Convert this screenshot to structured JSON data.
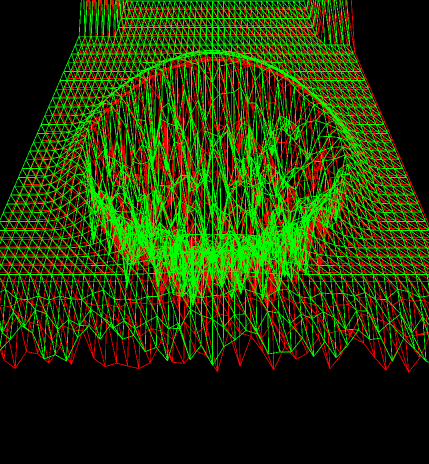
{
  "scene": {
    "background": "#000000",
    "meshes": [
      {
        "name": "mesh-red",
        "color": "#ff0000"
      },
      {
        "name": "mesh-green",
        "color": "#00ff00"
      }
    ]
  }
}
